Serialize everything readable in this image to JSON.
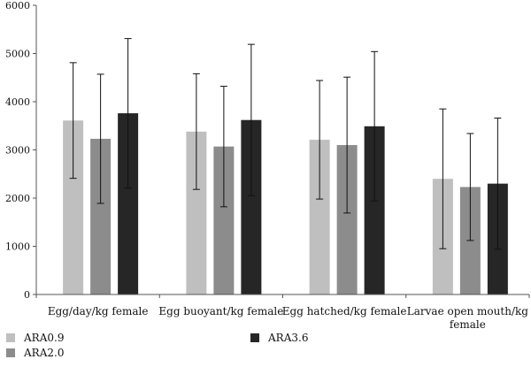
{
  "chart_data": {
    "type": "bar",
    "categories": [
      [
        "Egg/day/kg female"
      ],
      [
        "Egg buoyant/kg female"
      ],
      [
        "Egg hatched/kg female"
      ],
      [
        "Larvae open mouth/kg",
        "female"
      ]
    ],
    "series": [
      {
        "name": "ARA0.9",
        "color": "#bfbfbf",
        "values": [
          3610,
          3380,
          3210,
          2400
        ],
        "error": [
          1200,
          1200,
          1230,
          1450
        ]
      },
      {
        "name": "ARA2.0",
        "color": "#8c8c8c",
        "values": [
          3230,
          3070,
          3100,
          2230
        ],
        "error": [
          1340,
          1250,
          1410,
          1110
        ]
      },
      {
        "name": "ARA3.6",
        "color": "#262626",
        "values": [
          3760,
          3620,
          3490,
          2300
        ],
        "error": [
          1550,
          1570,
          1550,
          1360
        ]
      }
    ],
    "ylim": [
      0,
      6000
    ],
    "yticks": [
      0,
      1000,
      2000,
      3000,
      4000,
      5000,
      6000
    ],
    "legend_position": "bottom"
  }
}
